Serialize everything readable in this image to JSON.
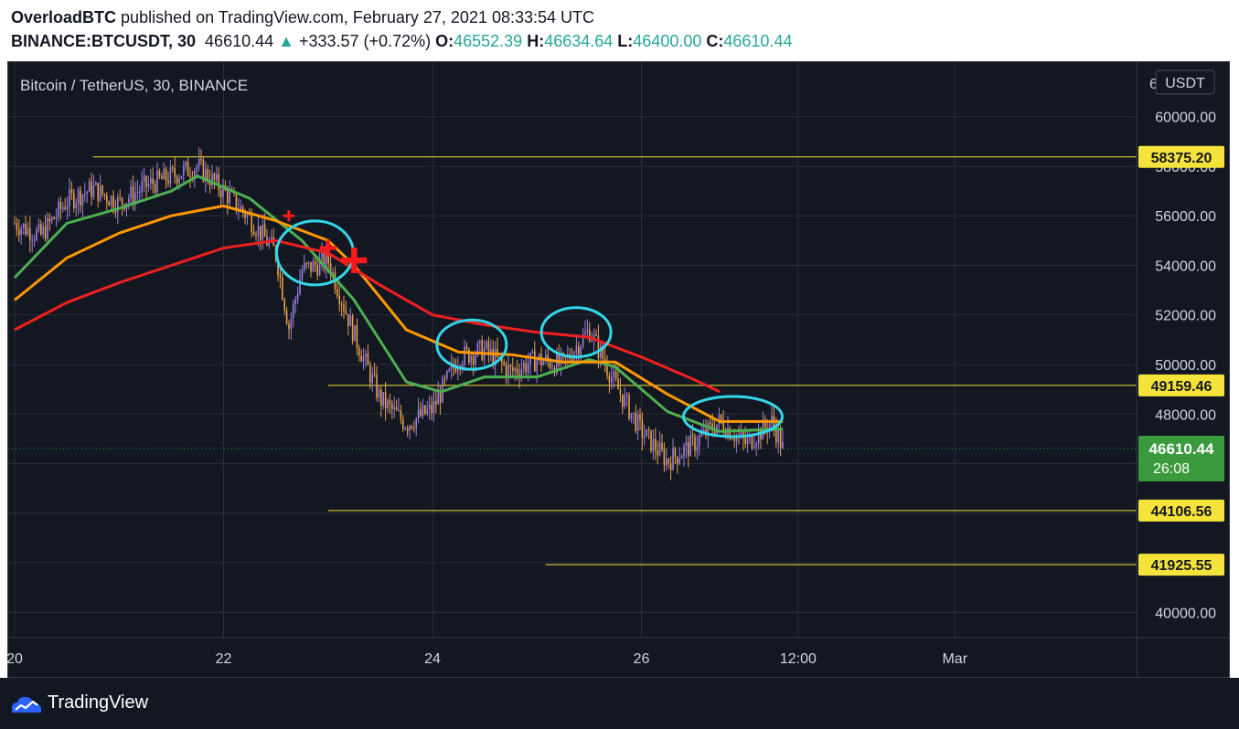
{
  "header": {
    "author": "OverloadBTC",
    "published": "published on TradingView.com, February 27, 2021 08:33:54 UTC",
    "symbol": "BINANCE:BTCUSDT, 30",
    "last": "46610.44",
    "arrow": "▲",
    "change": "+333.57 (+0.72%)",
    "o_label": "O:",
    "o_value": "46552.39",
    "h_label": "H:",
    "h_value": "46634.64",
    "l_label": "L:",
    "l_value": "46400.00",
    "c_label": "C:",
    "c_value": "46610.44"
  },
  "chart_title": "Bitcoin / TetherUS, 30, BINANCE",
  "currency_badge": "USDT",
  "countdown": "26:08",
  "footer": {
    "brand": "TradingView",
    "logo_icon": "tradingview-cloud-icon"
  },
  "colors": {
    "background": "#131722",
    "grid": "#2a2e39",
    "ma_fast": "#4caf50",
    "ma_mid": "#ff9800",
    "ma_slow": "#f21f1f",
    "level_line": "#f5e33b",
    "circle": "#33d6e8",
    "cross": "#ff1a1a",
    "price_badge": "#3b9a3d"
  },
  "chart_data": {
    "type": "candlestick",
    "y_ticks": [
      60000,
      58000,
      56000,
      54000,
      52000,
      50000,
      48000,
      46000,
      44000,
      42000,
      40000
    ],
    "y_tick_labels": [
      "60000.00",
      "58000.00",
      "56000.00",
      "54000.00",
      "52000.00",
      "50000.00",
      "48000.00",
      "46000.00",
      "44000.00",
      "42000.00",
      "40000.00"
    ],
    "y_top_partial": "6",
    "ylim": [
      38980,
      62200
    ],
    "x_ticks": [
      "20",
      "22",
      "24",
      "26",
      "12:00",
      "Mar"
    ],
    "current_price": 46610.44,
    "horizontal_levels": [
      {
        "value": 58375.2,
        "label": "58375.20",
        "from": "Feb 20 18:00",
        "to": "end"
      },
      {
        "value": 49159.46,
        "label": "49159.46",
        "from": "Feb 23 00:00",
        "to": "end"
      },
      {
        "value": 44106.56,
        "label": "44106.56",
        "from": "Feb 23 00:00",
        "to": "end"
      },
      {
        "value": 41925.55,
        "label": "41925.55",
        "from": "Feb 25 02:00",
        "to": "end"
      }
    ],
    "price_path": [
      [
        "Feb 20 00:00",
        55700
      ],
      [
        "Feb 20 06:00",
        55200
      ],
      [
        "Feb 20 12:00",
        56600
      ],
      [
        "Feb 20 18:00",
        57100
      ],
      [
        "Feb 21 00:00",
        56500
      ],
      [
        "Feb 21 06:00",
        57200
      ],
      [
        "Feb 21 12:00",
        57600
      ],
      [
        "Feb 21 18:00",
        58000
      ],
      [
        "Feb 22 00:00",
        57000
      ],
      [
        "Feb 22 06:00",
        55900
      ],
      [
        "Feb 22 12:00",
        54500
      ],
      [
        "Feb 22 15:00",
        51500
      ],
      [
        "Feb 22 18:00",
        53800
      ],
      [
        "Feb 23 00:00",
        54200
      ],
      [
        "Feb 23 06:00",
        51200
      ],
      [
        "Feb 23 12:00",
        48600
      ],
      [
        "Feb 23 18:00",
        47600
      ],
      [
        "Feb 24 00:00",
        48200
      ],
      [
        "Feb 24 06:00",
        50300
      ],
      [
        "Feb 24 12:00",
        50600
      ],
      [
        "Feb 24 18:00",
        49700
      ],
      [
        "Feb 25 00:00",
        50200
      ],
      [
        "Feb 25 06:00",
        50000
      ],
      [
        "Feb 25 12:00",
        51400
      ],
      [
        "Feb 25 18:00",
        49200
      ],
      [
        "Feb 26 00:00",
        47300
      ],
      [
        "Feb 26 06:00",
        46100
      ],
      [
        "Feb 26 12:00",
        46800
      ],
      [
        "Feb 26 18:00",
        47700
      ],
      [
        "Feb 27 00:00",
        46800
      ],
      [
        "Feb 27 06:00",
        47700
      ],
      [
        "Feb 27 08:30",
        46610
      ]
    ],
    "moving_averages": [
      {
        "color_key": "ma_fast",
        "points": [
          [
            "Feb 20 00:00",
            53500
          ],
          [
            "Feb 20 12:00",
            55700
          ],
          [
            "Feb 21 00:00",
            56300
          ],
          [
            "Feb 21 12:00",
            57000
          ],
          [
            "Feb 21 18:00",
            57600
          ],
          [
            "Feb 22 06:00",
            56700
          ],
          [
            "Feb 22 18:00",
            55000
          ],
          [
            "Feb 23 06:00",
            52600
          ],
          [
            "Feb 23 18:00",
            49300
          ],
          [
            "Feb 24 02:00",
            48900
          ],
          [
            "Feb 24 12:00",
            49500
          ],
          [
            "Feb 25 00:00",
            49500
          ],
          [
            "Feb 25 12:00",
            50200
          ],
          [
            "Feb 25 18:00",
            49900
          ],
          [
            "Feb 26 06:00",
            48100
          ],
          [
            "Feb 26 18:00",
            47300
          ],
          [
            "Feb 27 08:30",
            47400
          ]
        ]
      },
      {
        "color_key": "ma_mid",
        "points": [
          [
            "Feb 20 00:00",
            52600
          ],
          [
            "Feb 20 12:00",
            54300
          ],
          [
            "Feb 21 00:00",
            55300
          ],
          [
            "Feb 21 12:00",
            56000
          ],
          [
            "Feb 22 00:00",
            56400
          ],
          [
            "Feb 22 12:00",
            55800
          ],
          [
            "Feb 23 00:00",
            55000
          ],
          [
            "Feb 23 06:00",
            54000
          ],
          [
            "Feb 23 18:00",
            51400
          ],
          [
            "Feb 24 06:00",
            50500
          ],
          [
            "Feb 24 18:00",
            50400
          ],
          [
            "Feb 25 06:00",
            50100
          ],
          [
            "Feb 25 18:00",
            50100
          ],
          [
            "Feb 26 06:00",
            48800
          ],
          [
            "Feb 26 18:00",
            47700
          ],
          [
            "Feb 27 08:30",
            47700
          ]
        ]
      },
      {
        "color_key": "ma_slow",
        "points": [
          [
            "Feb 20 00:00",
            51400
          ],
          [
            "Feb 20 12:00",
            52500
          ],
          [
            "Feb 21 00:00",
            53300
          ],
          [
            "Feb 21 12:00",
            54000
          ],
          [
            "Feb 22 00:00",
            54700
          ],
          [
            "Feb 22 12:00",
            55000
          ],
          [
            "Feb 23 00:00",
            54500
          ],
          [
            "Feb 23 12:00",
            53200
          ],
          [
            "Feb 24 00:00",
            52000
          ],
          [
            "Feb 24 12:00",
            51600
          ],
          [
            "Feb 25 00:00",
            51300
          ],
          [
            "Feb 25 12:00",
            51100
          ],
          [
            "Feb 26 00:00",
            50300
          ],
          [
            "Feb 26 12:00",
            49400
          ],
          [
            "Feb 26 18:00",
            48900
          ]
        ]
      }
    ],
    "annotation_circles": [
      {
        "time": "Feb 22 21:00",
        "price": 54500
      },
      {
        "time": "Feb 24 09:00",
        "price": 50800
      },
      {
        "time": "Feb 25 09:00",
        "price": 51300
      },
      {
        "time": "Feb 26 21:00",
        "price": 47900
      }
    ],
    "cross_markers": [
      {
        "time": "Feb 22 15:00",
        "price": 56000,
        "size": "small"
      },
      {
        "time": "Feb 23 00:00",
        "price": 54700,
        "size": "medium"
      },
      {
        "time": "Feb 23 06:00",
        "price": 54200,
        "size": "large"
      }
    ]
  }
}
